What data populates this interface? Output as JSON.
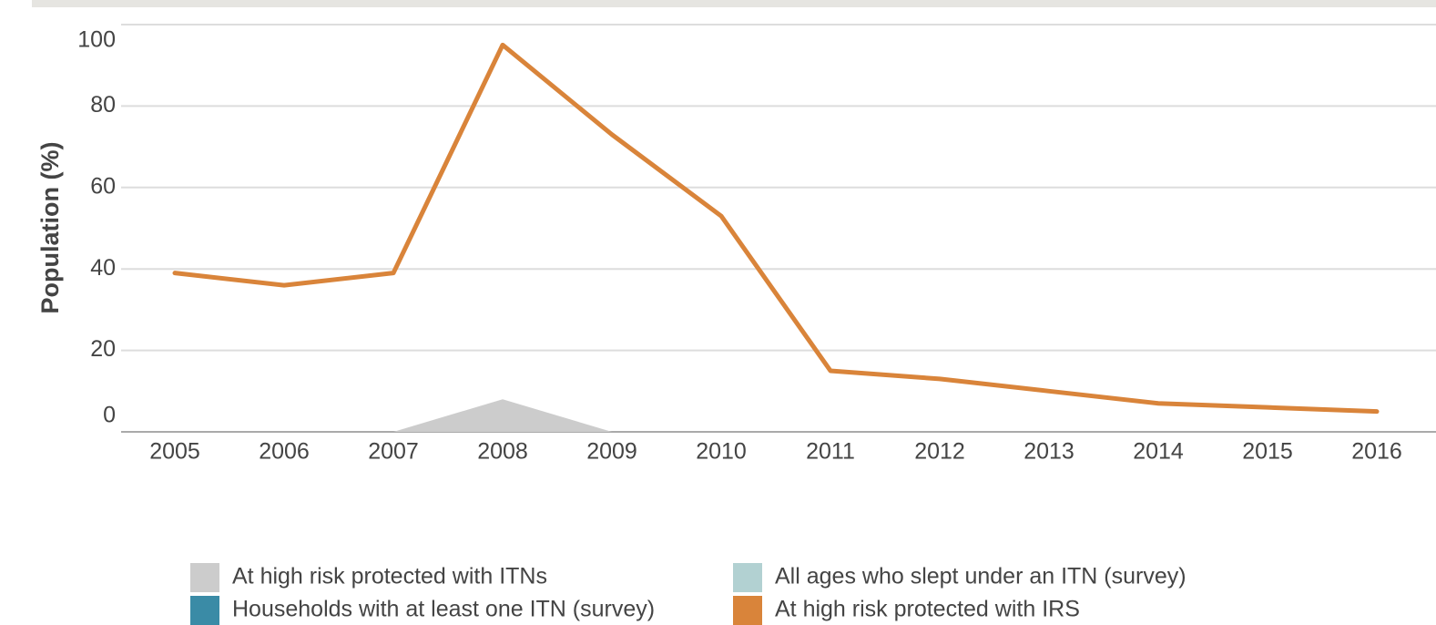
{
  "chart_data": {
    "type": "line",
    "y_label": "Population (%)",
    "categories": [
      "2005",
      "2006",
      "2007",
      "2008",
      "2009",
      "2010",
      "2011",
      "2012",
      "2013",
      "2014",
      "2015",
      "2016"
    ],
    "series": [
      {
        "name": "At high risk protected with ITNs",
        "color": "#cccccc",
        "type": "area",
        "values": [
          null,
          null,
          0,
          8,
          0,
          null,
          null,
          null,
          null,
          null,
          null,
          null
        ]
      },
      {
        "name": "All ages who slept under an ITN (survey)",
        "color": "#b2d1d2",
        "type": "line",
        "values": [
          null,
          null,
          null,
          null,
          null,
          null,
          null,
          null,
          null,
          null,
          null,
          null
        ]
      },
      {
        "name": "Households with at least one ITN (survey)",
        "color": "#3a8ba6",
        "type": "line",
        "values": [
          null,
          null,
          null,
          null,
          null,
          null,
          null,
          null,
          null,
          null,
          null,
          null
        ]
      },
      {
        "name": "At high risk protected with IRS",
        "color": "#d9843a",
        "type": "line",
        "values": [
          39,
          36,
          39,
          95,
          73,
          53,
          15,
          13,
          10,
          7,
          6,
          5
        ]
      }
    ],
    "ylim": [
      0,
      100
    ],
    "yticks": [
      0,
      20,
      40,
      60,
      80,
      100
    ],
    "grid": true
  }
}
